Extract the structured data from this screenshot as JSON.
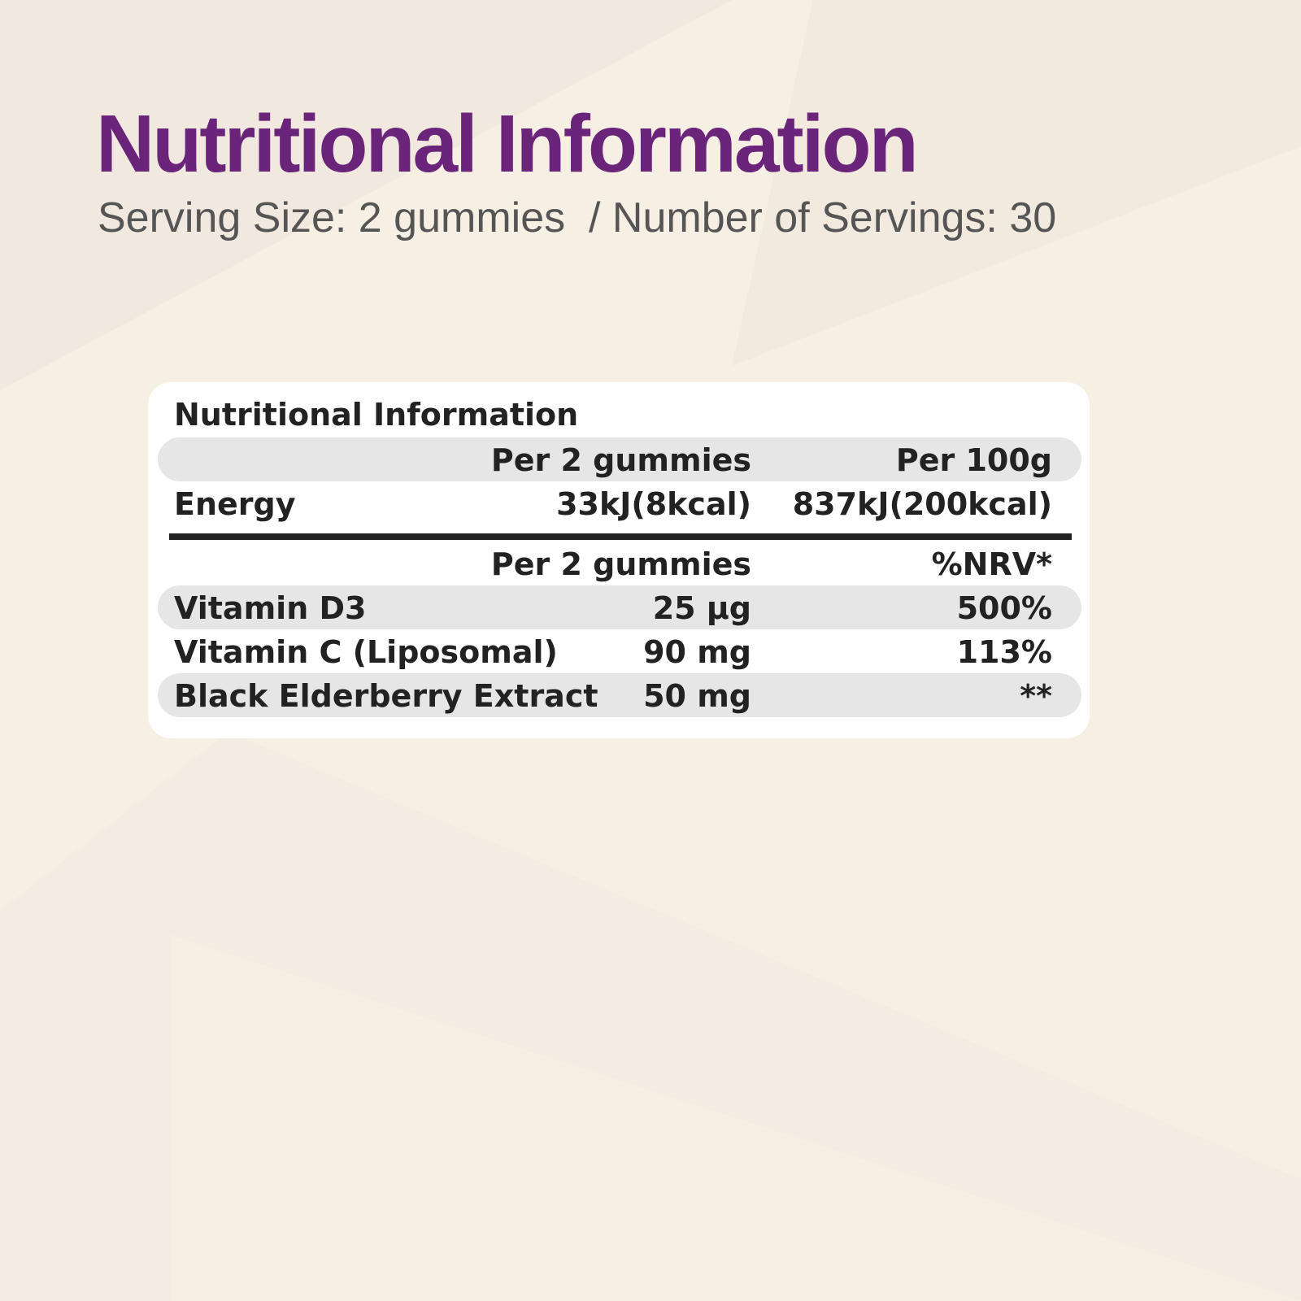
{
  "header": {
    "title": "Nutritional Information",
    "subtitle": "Serving Size: 2 gummies  / Number of Servings: 30"
  },
  "table": {
    "title": "Nutritional Information",
    "energy_header": [
      "",
      "Per 2 gummies",
      "Per 100g"
    ],
    "energy_row": [
      "Energy",
      "33kJ(8kcal)",
      "837kJ(200kcal)"
    ],
    "nutrient_header": [
      "",
      "Per 2 gummies",
      "%NRV*"
    ],
    "rows": [
      [
        "Vitamin D3",
        "25 µg",
        "500%"
      ],
      [
        "Vitamin C (Liposomal)",
        "90 mg",
        "113%"
      ],
      [
        "Black Elderberry Extract",
        "50 mg",
        "**"
      ]
    ]
  }
}
